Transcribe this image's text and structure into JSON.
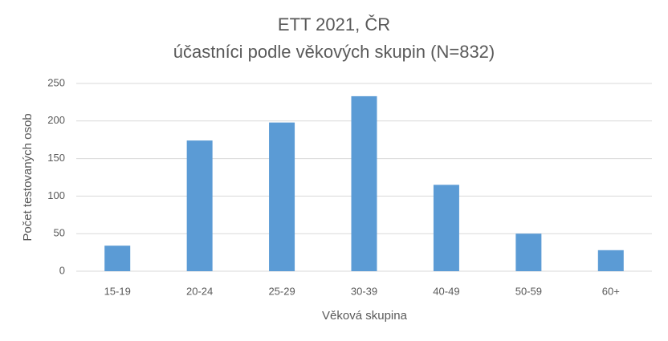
{
  "chart_data": {
    "type": "bar",
    "title": "ETT 2021, ČR",
    "subtitle": "účastníci podle věkových skupin (N=832)",
    "x_label": "Věková skupina",
    "y_label": "Počet testovaných osob",
    "categories": [
      "15-19",
      "20-24",
      "25-29",
      "30-39",
      "40-49",
      "50-59",
      "60+"
    ],
    "values": [
      34,
      174,
      198,
      233,
      115,
      50,
      28
    ],
    "color": "#5b9bd5",
    "ylim": [
      0,
      250
    ],
    "yticks": [
      0,
      50,
      100,
      150,
      200,
      250
    ],
    "grid": true
  }
}
